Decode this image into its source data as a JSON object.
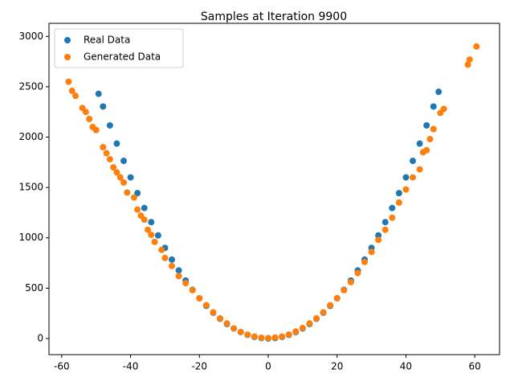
{
  "chart_data": {
    "type": "scatter",
    "title": "Samples at Iteration 9900",
    "xlim": [
      -63.7,
      67.2
    ],
    "ylim": [
      -160,
      3130
    ],
    "xticks": [
      -60,
      -40,
      -20,
      0,
      20,
      40,
      60
    ],
    "yticks": [
      0,
      500,
      1000,
      1500,
      2000,
      2500,
      3000
    ],
    "legend": "upper left",
    "series": [
      {
        "name": "Real Data",
        "color": "#1f77b4",
        "x": [
          -49.3,
          -48,
          -46,
          -44,
          -42,
          -40,
          -38,
          -36,
          -34,
          -32,
          -30,
          -28,
          -26,
          -24,
          -22,
          -20,
          -18,
          -16,
          -14,
          -12,
          -10,
          -8,
          -6,
          -4,
          -2,
          0,
          2,
          4,
          6,
          8,
          10,
          12,
          14,
          16,
          18,
          20,
          22,
          24,
          26,
          28,
          30,
          32,
          34,
          36,
          38,
          40,
          42,
          44,
          46,
          48,
          49.5
        ],
        "values": [
          2430,
          2304,
          2116,
          1936,
          1764,
          1600,
          1444,
          1296,
          1156,
          1024,
          900,
          784,
          676,
          576,
          484,
          400,
          324,
          256,
          196,
          144,
          100,
          64,
          36,
          16,
          4,
          0,
          4,
          16,
          36,
          64,
          100,
          144,
          196,
          256,
          324,
          400,
          484,
          576,
          676,
          784,
          900,
          1024,
          1156,
          1296,
          1444,
          1600,
          1764,
          1936,
          2116,
          2304,
          2450
        ]
      },
      {
        "name": "Generated Data",
        "color": "#ff7f0e",
        "x": [
          -58,
          -57,
          -56,
          -54,
          -53,
          -52,
          -51,
          -50,
          -48,
          -47,
          -46,
          -45,
          -44,
          -43,
          -42,
          -41,
          -39,
          -38,
          -37,
          -36,
          -35,
          -34,
          -33,
          -31,
          -30,
          -28,
          -26,
          -24,
          -22,
          -20,
          -18,
          -16,
          -14,
          -12,
          -10,
          -8,
          -6,
          -4,
          -2,
          0,
          2,
          4,
          6,
          8,
          10,
          12,
          14,
          16,
          18,
          20,
          22,
          24,
          26,
          28,
          30,
          32,
          34,
          36,
          38,
          40,
          42,
          44,
          45,
          46,
          47,
          48,
          50,
          51,
          58,
          58.5,
          60.5
        ],
        "values": [
          2550,
          2460,
          2410,
          2290,
          2250,
          2180,
          2100,
          2070,
          1900,
          1840,
          1780,
          1700,
          1650,
          1600,
          1550,
          1450,
          1400,
          1280,
          1220,
          1180,
          1080,
          1030,
          960,
          880,
          800,
          720,
          620,
          550,
          480,
          400,
          330,
          260,
          200,
          150,
          100,
          65,
          38,
          20,
          8,
          5,
          10,
          20,
          40,
          70,
          105,
          150,
          200,
          260,
          330,
          400,
          480,
          560,
          650,
          760,
          860,
          980,
          1080,
          1200,
          1350,
          1480,
          1600,
          1680,
          1850,
          1870,
          1980,
          2080,
          2240,
          2280,
          2720,
          2770,
          2900
        ]
      }
    ]
  }
}
